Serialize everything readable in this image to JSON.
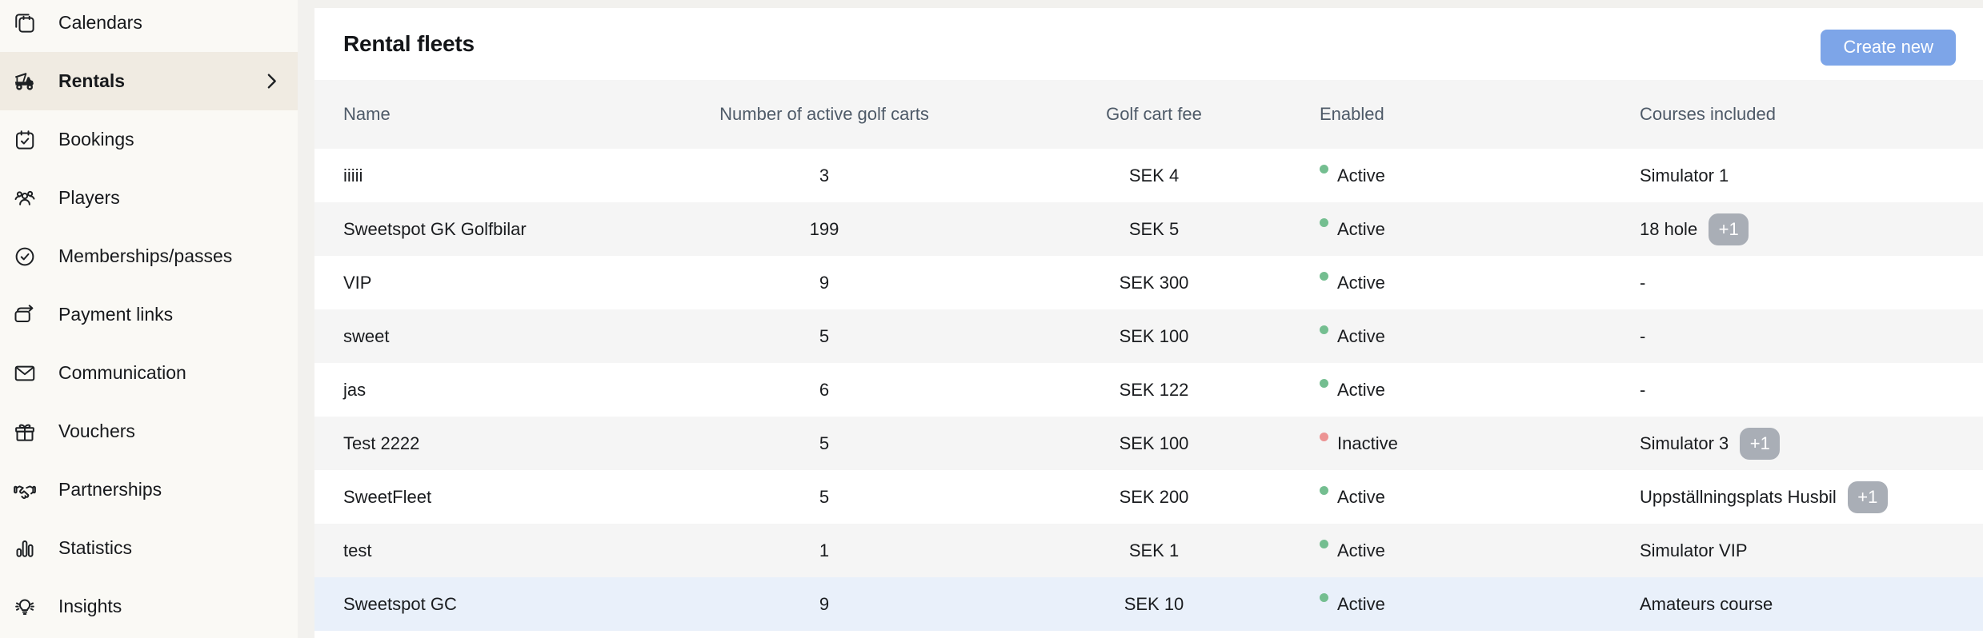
{
  "colors": {
    "page_bg": "#F2F1EE",
    "sidebar_bg": "#FAF9F5",
    "sidebar_active_bg": "#F0EBE2",
    "stripe": "#F5F5F5",
    "row_highlight": "#E9F0FA",
    "accent": "#7DA5E8",
    "badge_bg": "#A9AEB6",
    "dot_active": "#74BE90",
    "dot_inactive": "#EC9393",
    "head_text": "#4E5A68",
    "text": "#17191C"
  },
  "sidebar": {
    "items": [
      {
        "label": "Calendars",
        "icon": "calendars",
        "active": false,
        "chevron": false
      },
      {
        "label": "Rentals",
        "icon": "golf-cart",
        "active": true,
        "chevron": true
      },
      {
        "label": "Bookings",
        "icon": "bookings",
        "active": false,
        "chevron": false
      },
      {
        "label": "Players",
        "icon": "players",
        "active": false,
        "chevron": false
      },
      {
        "label": "Memberships/passes",
        "icon": "memberships",
        "active": false,
        "chevron": false
      },
      {
        "label": "Payment links",
        "icon": "payment-links",
        "active": false,
        "chevron": false
      },
      {
        "label": "Communication",
        "icon": "communication",
        "active": false,
        "chevron": false
      },
      {
        "label": "Vouchers",
        "icon": "vouchers",
        "active": false,
        "chevron": false
      },
      {
        "label": "Partnerships",
        "icon": "partnerships",
        "active": false,
        "chevron": false
      },
      {
        "label": "Statistics",
        "icon": "statistics",
        "active": false,
        "chevron": false
      },
      {
        "label": "Insights",
        "icon": "insights",
        "active": false,
        "chevron": false
      }
    ]
  },
  "header": {
    "title": "Rental fleets",
    "create_button": "Create new"
  },
  "table": {
    "columns": [
      {
        "key": "name",
        "label": "Name"
      },
      {
        "key": "carts",
        "label": "Number of active golf carts"
      },
      {
        "key": "fee",
        "label": "Golf cart fee"
      },
      {
        "key": "enabled",
        "label": "Enabled"
      },
      {
        "key": "courses",
        "label": "Courses included"
      }
    ],
    "rows": [
      {
        "name": "iiiii",
        "carts": "3",
        "fee": "SEK 4",
        "status": "active",
        "status_label": "Active",
        "courses": "Simulator 1",
        "badge": "",
        "highlighted": false
      },
      {
        "name": "Sweetspot GK Golfbilar",
        "carts": "199",
        "fee": "SEK 5",
        "status": "active",
        "status_label": "Active",
        "courses": "18 hole",
        "badge": "+1",
        "highlighted": false
      },
      {
        "name": "VIP",
        "carts": "9",
        "fee": "SEK 300",
        "status": "active",
        "status_label": "Active",
        "courses": "-",
        "badge": "",
        "highlighted": false
      },
      {
        "name": "sweet",
        "carts": "5",
        "fee": "SEK 100",
        "status": "active",
        "status_label": "Active",
        "courses": "-",
        "badge": "",
        "highlighted": false
      },
      {
        "name": "jas",
        "carts": "6",
        "fee": "SEK 122",
        "status": "active",
        "status_label": "Active",
        "courses": "-",
        "badge": "",
        "highlighted": false
      },
      {
        "name": "Test 2222",
        "carts": "5",
        "fee": "SEK 100",
        "status": "inactive",
        "status_label": "Inactive",
        "courses": "Simulator 3",
        "badge": "+1",
        "highlighted": false
      },
      {
        "name": "SweetFleet",
        "carts": "5",
        "fee": "SEK 200",
        "status": "active",
        "status_label": "Active",
        "courses": "Uppställningsplats Husbil",
        "badge": "+1",
        "highlighted": false
      },
      {
        "name": "test",
        "carts": "1",
        "fee": "SEK 1",
        "status": "active",
        "status_label": "Active",
        "courses": "Simulator VIP",
        "badge": "",
        "highlighted": false
      },
      {
        "name": "Sweetspot GC",
        "carts": "9",
        "fee": "SEK 10",
        "status": "active",
        "status_label": "Active",
        "courses": "Amateurs course",
        "badge": "",
        "highlighted": true
      }
    ]
  }
}
